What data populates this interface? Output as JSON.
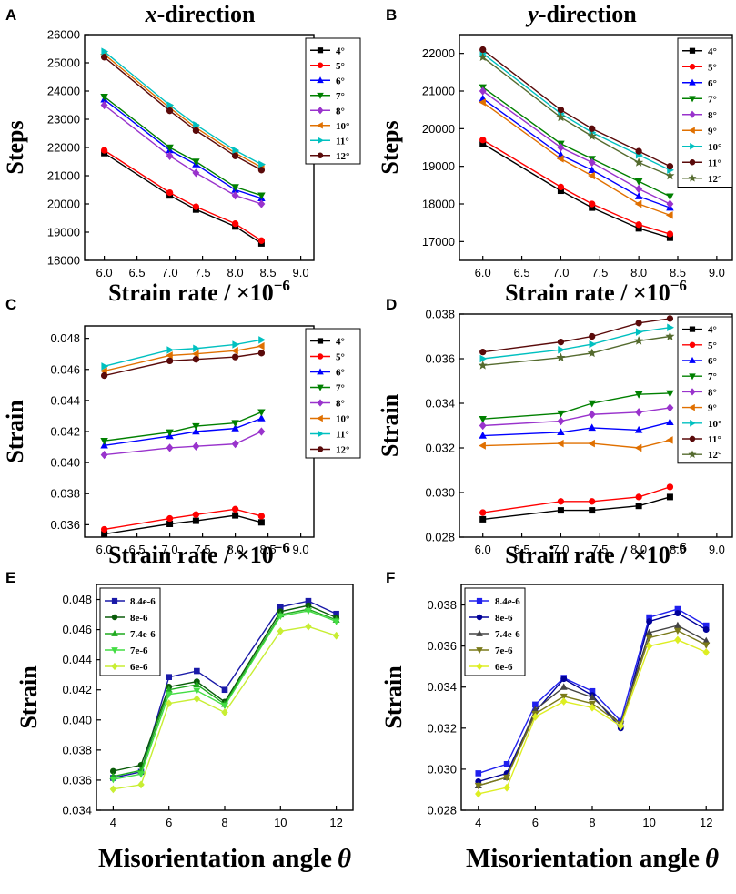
{
  "chart_data": [
    {
      "panel": "A",
      "type": "line",
      "title": "x-direction",
      "title_italic": "x",
      "title_rest": "-direction",
      "xlabel": "Strain  rate / ×10",
      "xlabel_exp": "−6",
      "ylabel": "Steps",
      "xlim": [
        5.7,
        9.2
      ],
      "ylim": [
        18000,
        26000
      ],
      "xticks": [
        "6.0",
        "6.5",
        "7.0",
        "7.5",
        "8.0",
        "8.5",
        "9.0"
      ],
      "yticks": [
        "18000",
        "19000",
        "20000",
        "21000",
        "22000",
        "23000",
        "24000",
        "25000",
        "26000"
      ],
      "x": [
        6.0,
        7.0,
        7.4,
        8.0,
        8.4
      ],
      "series": [
        {
          "name": "4°",
          "color": "#000000",
          "marker": "square",
          "values": [
            21800,
            20300,
            19800,
            19200,
            18600
          ]
        },
        {
          "name": "5°",
          "color": "#ff0000",
          "marker": "circle",
          "values": [
            21900,
            20400,
            19900,
            19300,
            18700
          ]
        },
        {
          "name": "6°",
          "color": "#0000ff",
          "marker": "triUp",
          "values": [
            23700,
            21900,
            21400,
            20500,
            20200
          ]
        },
        {
          "name": "7°",
          "color": "#008000",
          "marker": "triDown",
          "values": [
            23800,
            22000,
            21500,
            20600,
            20300
          ]
        },
        {
          "name": "8°",
          "color": "#9933cc",
          "marker": "diamond",
          "values": [
            23500,
            21700,
            21100,
            20300,
            20000
          ]
        },
        {
          "name": "10°",
          "color": "#e07000",
          "marker": "triLeft",
          "values": [
            25300,
            23400,
            22700,
            21800,
            21300
          ]
        },
        {
          "name": "11°",
          "color": "#00c0c0",
          "marker": "triRight",
          "values": [
            25400,
            23500,
            22800,
            21900,
            21400
          ]
        },
        {
          "name": "12°",
          "color": "#5a0a0a",
          "marker": "circle",
          "values": [
            25200,
            23300,
            22600,
            21700,
            21200
          ]
        }
      ]
    },
    {
      "panel": "B",
      "type": "line",
      "title": "y-direction",
      "title_italic": "y",
      "title_rest": "-direction",
      "xlabel": "Strain  rate / ×10",
      "xlabel_exp": "−6",
      "ylabel": "Steps",
      "xlim": [
        5.7,
        9.2
      ],
      "ylim": [
        16500,
        22500
      ],
      "xticks": [
        "6.0",
        "6.5",
        "7.0",
        "7.5",
        "8.0",
        "8.5",
        "9.0"
      ],
      "yticks": [
        "17000",
        "18000",
        "19000",
        "20000",
        "21000",
        "22000"
      ],
      "x": [
        6.0,
        7.0,
        7.4,
        8.0,
        8.4
      ],
      "series": [
        {
          "name": "4°",
          "color": "#000000",
          "marker": "square",
          "values": [
            19600,
            18350,
            17900,
            17350,
            17100
          ]
        },
        {
          "name": "5°",
          "color": "#ff0000",
          "marker": "circle",
          "values": [
            19700,
            18450,
            18000,
            17450,
            17200
          ]
        },
        {
          "name": "6°",
          "color": "#0000ff",
          "marker": "triUp",
          "values": [
            20800,
            19300,
            18900,
            18200,
            17900
          ]
        },
        {
          "name": "7°",
          "color": "#008000",
          "marker": "triDown",
          "values": [
            21100,
            19600,
            19200,
            18600,
            18200
          ]
        },
        {
          "name": "8°",
          "color": "#9933cc",
          "marker": "diamond",
          "values": [
            21000,
            19500,
            19100,
            18400,
            18000
          ]
        },
        {
          "name": "9°",
          "color": "#e07000",
          "marker": "triLeft",
          "values": [
            20700,
            19200,
            18750,
            18000,
            17700
          ]
        },
        {
          "name": "10°",
          "color": "#00c0c0",
          "marker": "triRight",
          "values": [
            22000,
            20400,
            19900,
            19300,
            18900
          ]
        },
        {
          "name": "11°",
          "color": "#5a0a0a",
          "marker": "circle",
          "values": [
            22100,
            20500,
            20000,
            19400,
            19000
          ]
        },
        {
          "name": "12°",
          "color": "#556b2f",
          "marker": "star",
          "values": [
            21900,
            20300,
            19800,
            19100,
            18750
          ]
        }
      ]
    },
    {
      "panel": "C",
      "type": "line",
      "xlabel": "Strain  rate / ×10",
      "xlabel_exp": "−6",
      "ylabel": "Strain",
      "xlim": [
        5.7,
        9.2
      ],
      "ylim": [
        0.0352,
        0.0488
      ],
      "xticks": [
        "6.0",
        "6.5",
        "7.0",
        "7.5",
        "8.0",
        "8.5",
        "9.0"
      ],
      "yticks": [
        "0.036",
        "0.038",
        "0.040",
        "0.042",
        "0.044",
        "0.046",
        "0.048"
      ],
      "x": [
        6.0,
        7.0,
        7.4,
        8.0,
        8.4
      ],
      "series": [
        {
          "name": "4°",
          "color": "#000000",
          "marker": "square",
          "values": [
            0.0354,
            0.03605,
            0.03625,
            0.0366,
            0.03615
          ]
        },
        {
          "name": "5°",
          "color": "#ff0000",
          "marker": "circle",
          "values": [
            0.0357,
            0.0364,
            0.03665,
            0.037,
            0.03655
          ]
        },
        {
          "name": "6°",
          "color": "#0000ff",
          "marker": "triUp",
          "values": [
            0.0411,
            0.0417,
            0.042,
            0.0422,
            0.04285
          ]
        },
        {
          "name": "7°",
          "color": "#008000",
          "marker": "triDown",
          "values": [
            0.0414,
            0.04195,
            0.04235,
            0.04255,
            0.04325
          ]
        },
        {
          "name": "8°",
          "color": "#9933cc",
          "marker": "diamond",
          "values": [
            0.0405,
            0.04095,
            0.04105,
            0.0412,
            0.042
          ]
        },
        {
          "name": "10°",
          "color": "#e07000",
          "marker": "triLeft",
          "values": [
            0.0459,
            0.0469,
            0.047,
            0.0472,
            0.0475
          ]
        },
        {
          "name": "11°",
          "color": "#00c0c0",
          "marker": "triRight",
          "values": [
            0.0462,
            0.04725,
            0.04735,
            0.0476,
            0.0479
          ]
        },
        {
          "name": "12°",
          "color": "#5a0a0a",
          "marker": "circle",
          "values": [
            0.0456,
            0.04655,
            0.04665,
            0.0468,
            0.04705
          ]
        }
      ]
    },
    {
      "panel": "D",
      "type": "line",
      "xlabel": "Strain  rate / ×10",
      "xlabel_exp": "−6",
      "ylabel": "Strain",
      "xlim": [
        5.7,
        9.2
      ],
      "ylim": [
        0.028,
        0.038
      ],
      "xticks": [
        "6.0",
        "6.5",
        "7.0",
        "7.5",
        "8.0",
        "8.5",
        "9.0"
      ],
      "yticks": [
        "0.028",
        "0.030",
        "0.032",
        "0.034",
        "0.036",
        "0.038"
      ],
      "x": [
        6.0,
        7.0,
        7.4,
        8.0,
        8.4
      ],
      "series": [
        {
          "name": "4°",
          "color": "#000000",
          "marker": "square",
          "values": [
            0.0288,
            0.0292,
            0.0292,
            0.0294,
            0.0298
          ]
        },
        {
          "name": "5°",
          "color": "#ff0000",
          "marker": "circle",
          "values": [
            0.0291,
            0.0296,
            0.0296,
            0.0298,
            0.03025
          ]
        },
        {
          "name": "6°",
          "color": "#0000ff",
          "marker": "triUp",
          "values": [
            0.03255,
            0.0327,
            0.0329,
            0.0328,
            0.03315
          ]
        },
        {
          "name": "7°",
          "color": "#008000",
          "marker": "triDown",
          "values": [
            0.0333,
            0.03355,
            0.034,
            0.0344,
            0.03445
          ]
        },
        {
          "name": "8°",
          "color": "#9933cc",
          "marker": "diamond",
          "values": [
            0.033,
            0.0332,
            0.0335,
            0.0336,
            0.0338
          ]
        },
        {
          "name": "9°",
          "color": "#e07000",
          "marker": "triLeft",
          "values": [
            0.0321,
            0.0322,
            0.0322,
            0.032,
            0.03235
          ]
        },
        {
          "name": "10°",
          "color": "#00c0c0",
          "marker": "triRight",
          "values": [
            0.036,
            0.0364,
            0.03665,
            0.0372,
            0.0374
          ]
        },
        {
          "name": "11°",
          "color": "#5a0a0a",
          "marker": "circle",
          "values": [
            0.0363,
            0.03675,
            0.037,
            0.0376,
            0.0378
          ]
        },
        {
          "name": "12°",
          "color": "#556b2f",
          "marker": "star",
          "values": [
            0.0357,
            0.03605,
            0.03625,
            0.0368,
            0.037
          ]
        }
      ]
    },
    {
      "panel": "E",
      "type": "line",
      "xlabel": "Misorientation angle",
      "xlabel_symbol": "θ",
      "ylabel": "Strain",
      "xlim": [
        3.4,
        12.6
      ],
      "ylim": [
        0.034,
        0.049
      ],
      "xticks": [
        "4",
        "6",
        "8",
        "10",
        "12"
      ],
      "yticks": [
        "0.034",
        "0.036",
        "0.038",
        "0.040",
        "0.042",
        "0.044",
        "0.046",
        "0.048"
      ],
      "x": [
        4,
        5,
        6,
        7,
        8,
        10,
        11,
        12
      ],
      "series": [
        {
          "name": "8.4e-6",
          "color": "#1a1aa8",
          "marker": "square",
          "values": [
            0.03615,
            0.03655,
            0.04285,
            0.04325,
            0.042,
            0.0475,
            0.0479,
            0.04705
          ]
        },
        {
          "name": "8e-6",
          "color": "#0a5c0a",
          "marker": "circle",
          "values": [
            0.0366,
            0.037,
            0.0422,
            0.04255,
            0.0412,
            0.0472,
            0.0476,
            0.0468
          ]
        },
        {
          "name": "7.4e-6",
          "color": "#1faa1f",
          "marker": "triUp",
          "values": [
            0.03625,
            0.03665,
            0.042,
            0.04235,
            0.04105,
            0.047,
            0.04735,
            0.04665
          ]
        },
        {
          "name": "7e-6",
          "color": "#44dd44",
          "marker": "triDown",
          "values": [
            0.03605,
            0.0364,
            0.0417,
            0.04195,
            0.04095,
            0.0469,
            0.04725,
            0.04655
          ]
        },
        {
          "name": "6e-6",
          "color": "#c8ee33",
          "marker": "diamond",
          "values": [
            0.0354,
            0.0357,
            0.0411,
            0.0414,
            0.0405,
            0.0459,
            0.0462,
            0.0456
          ]
        }
      ]
    },
    {
      "panel": "F",
      "type": "line",
      "xlabel": "Misorientation angle",
      "xlabel_symbol": "θ",
      "ylabel": "Strain",
      "xlim": [
        3.4,
        12.6
      ],
      "ylim": [
        0.028,
        0.039
      ],
      "xticks": [
        "4",
        "6",
        "8",
        "10",
        "12"
      ],
      "yticks": [
        "0.028",
        "0.030",
        "0.032",
        "0.034",
        "0.036",
        "0.038"
      ],
      "x": [
        4,
        5,
        6,
        7,
        8,
        9,
        10,
        11,
        12
      ],
      "series": [
        {
          "name": "8.4e-6",
          "color": "#2020ee",
          "marker": "square",
          "values": [
            0.0298,
            0.03025,
            0.03315,
            0.03445,
            0.0338,
            0.03235,
            0.0374,
            0.0378,
            0.037
          ]
        },
        {
          "name": "8e-6",
          "color": "#000099",
          "marker": "circle",
          "values": [
            0.0294,
            0.0298,
            0.0328,
            0.0344,
            0.0336,
            0.032,
            0.0372,
            0.0376,
            0.0368
          ]
        },
        {
          "name": "7.4e-6",
          "color": "#444444",
          "marker": "triUp",
          "values": [
            0.0292,
            0.0296,
            0.0329,
            0.034,
            0.0335,
            0.0322,
            0.03665,
            0.037,
            0.03625
          ]
        },
        {
          "name": "7e-6",
          "color": "#7a7a1a",
          "marker": "triDown",
          "values": [
            0.0292,
            0.0296,
            0.0327,
            0.03355,
            0.0332,
            0.0322,
            0.0364,
            0.03675,
            0.03605
          ]
        },
        {
          "name": "6e-6",
          "color": "#ddee22",
          "marker": "diamond",
          "values": [
            0.0288,
            0.0291,
            0.03255,
            0.0333,
            0.033,
            0.0321,
            0.036,
            0.0363,
            0.0357
          ]
        }
      ]
    }
  ]
}
